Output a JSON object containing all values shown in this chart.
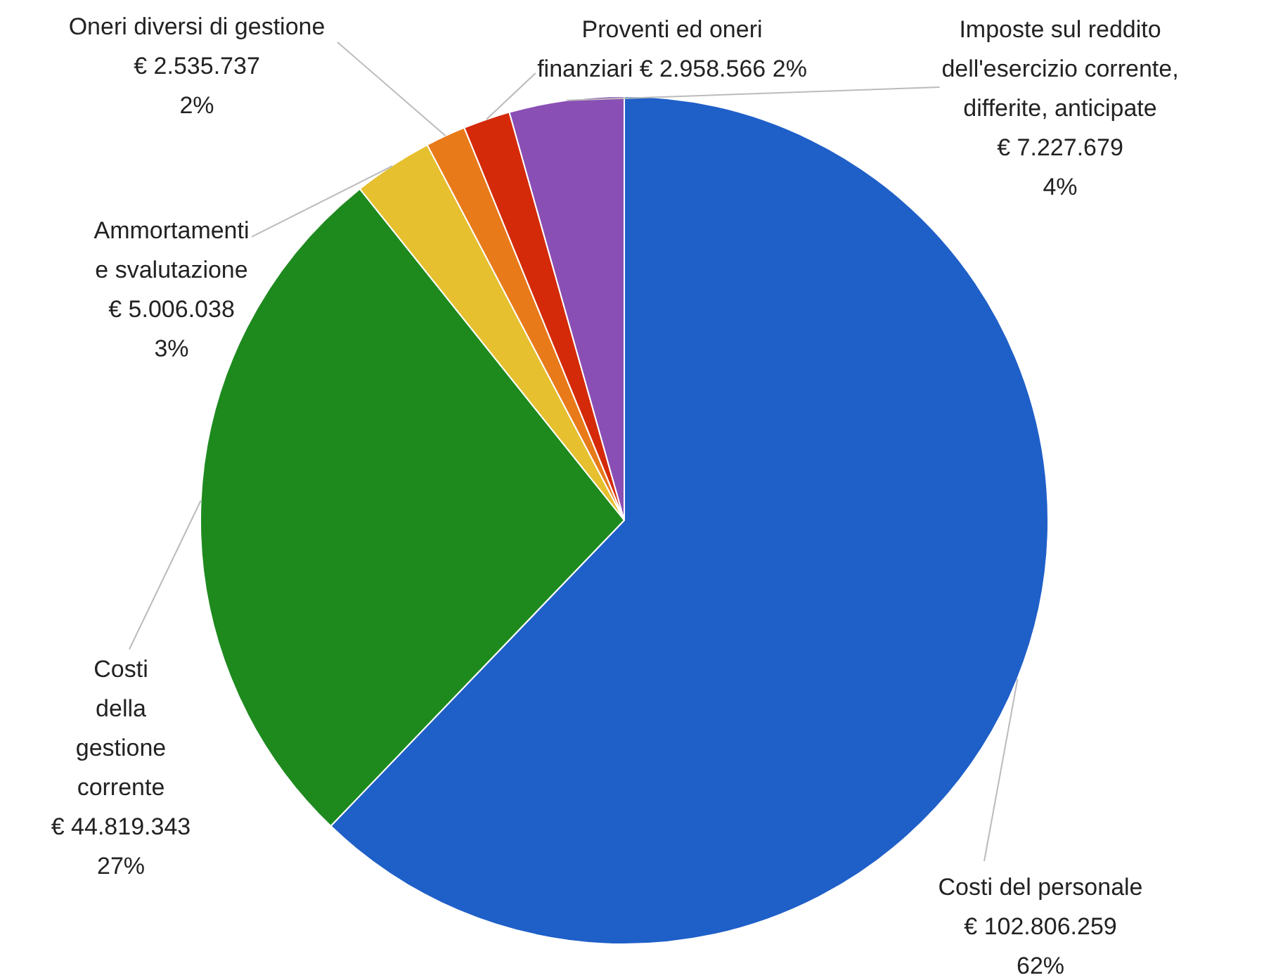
{
  "chart_data": {
    "type": "pie",
    "categories": [
      "Costi del personale",
      "Costi della gestione corrente",
      "Ammortamenti e svalutazione",
      "Oneri diversi di gestione",
      "Proventi ed oneri finanziari",
      "Imposte sul reddito dell'esercizio corrente, differite, anticipate"
    ],
    "values": [
      102806259,
      44819343,
      5006038,
      2535737,
      2958566,
      7227679
    ],
    "colors": [
      "#1f5fc8",
      "#1e8a1e",
      "#e6c02e",
      "#e87a1a",
      "#d42a0a",
      "#8a4fb5"
    ],
    "value_labels": [
      "€ 102.806.259 62%",
      "€ 44.819.343 27%",
      "€ 5.006.038 3%",
      "€ 2.535.737 2%",
      "€ 2.958.566 2%",
      "€ 7.227.679 4%"
    ],
    "legend": false
  }
}
